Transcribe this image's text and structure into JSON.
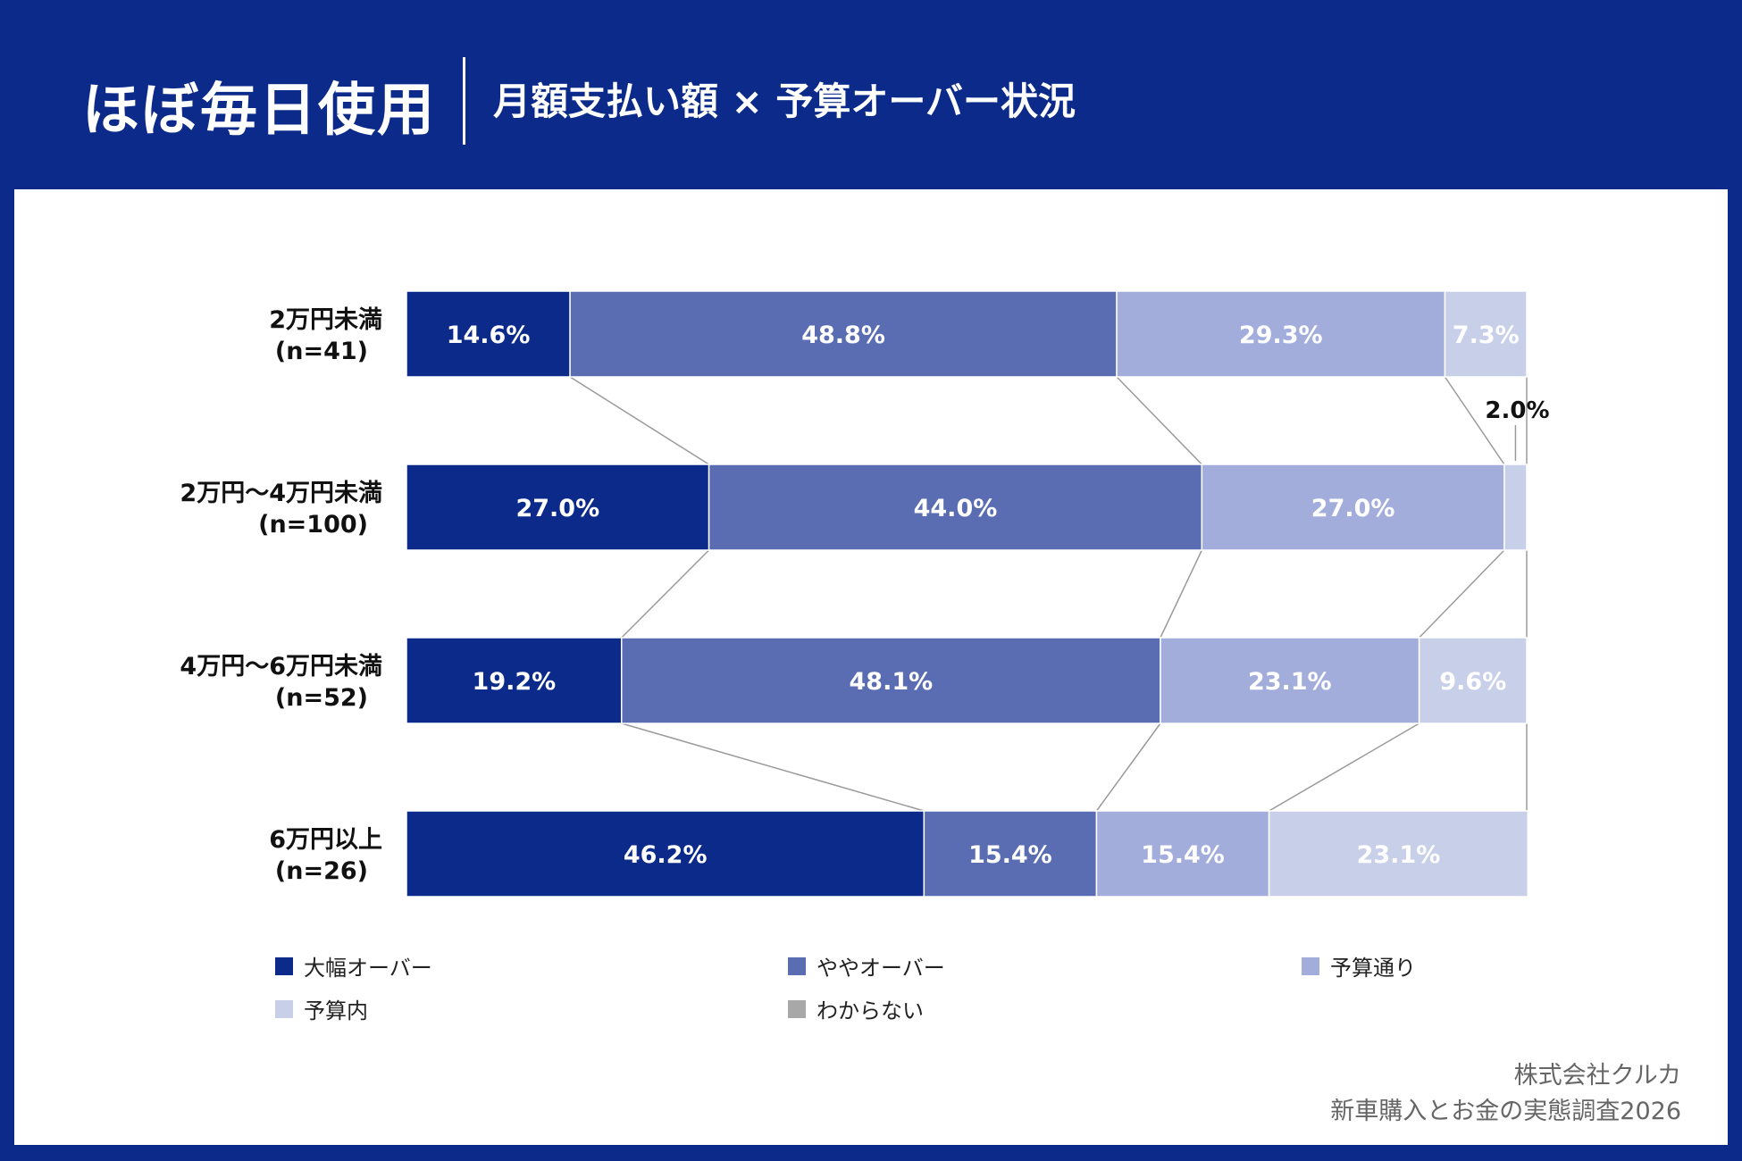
{
  "header": {
    "title": "ほぼ毎日使用",
    "subtitle": "月額支払い額 × 予算オーバー状況"
  },
  "colors": {
    "background": "#0b2a8a",
    "series": [
      "#0b2a8a",
      "#5a6db3",
      "#a3addb",
      "#c8cfe9",
      "#a8a8a8"
    ]
  },
  "chart_data": {
    "type": "bar",
    "orientation": "horizontal",
    "stacked": true,
    "percent": true,
    "categories": [
      {
        "label": "2万円未満",
        "n": "(n=41)"
      },
      {
        "label": "2万円〜4万円未満",
        "n": "(n=100)"
      },
      {
        "label": "4万円〜6万円未満",
        "n": "(n=52)"
      },
      {
        "label": "6万円以上",
        "n": "(n=26)"
      }
    ],
    "series": [
      {
        "name": "大幅オーバー",
        "values": [
          14.6,
          27.0,
          19.2,
          46.2
        ]
      },
      {
        "name": "ややオーバー",
        "values": [
          48.8,
          44.0,
          48.1,
          15.4
        ]
      },
      {
        "name": "予算通り",
        "values": [
          29.3,
          27.0,
          23.1,
          15.4
        ]
      },
      {
        "name": "予算内",
        "values": [
          7.3,
          2.0,
          9.6,
          23.1
        ]
      },
      {
        "name": "わからない",
        "values": [
          0,
          0,
          0,
          0
        ]
      }
    ],
    "value_labels": [
      [
        "14.6%",
        "48.8%",
        "29.3%",
        "7.3%",
        ""
      ],
      [
        "27.0%",
        "44.0%",
        "27.0%",
        "",
        ""
      ],
      [
        "19.2%",
        "48.1%",
        "23.1%",
        "9.6%",
        ""
      ],
      [
        "46.2%",
        "15.4%",
        "15.4%",
        "23.1%",
        ""
      ]
    ],
    "callouts": [
      {
        "category_index": 1,
        "series_index": 3,
        "text": "2.0%"
      }
    ],
    "legend_position": "bottom",
    "xlim": [
      0,
      100
    ]
  },
  "legend": [
    {
      "label": "大幅オーバー"
    },
    {
      "label": "ややオーバー"
    },
    {
      "label": "予算通り"
    },
    {
      "label": "予算内"
    },
    {
      "label": "わからない"
    }
  ],
  "credit": {
    "line1": "株式会社クルカ",
    "line2": "新車購入とお金の実態調査2026"
  }
}
